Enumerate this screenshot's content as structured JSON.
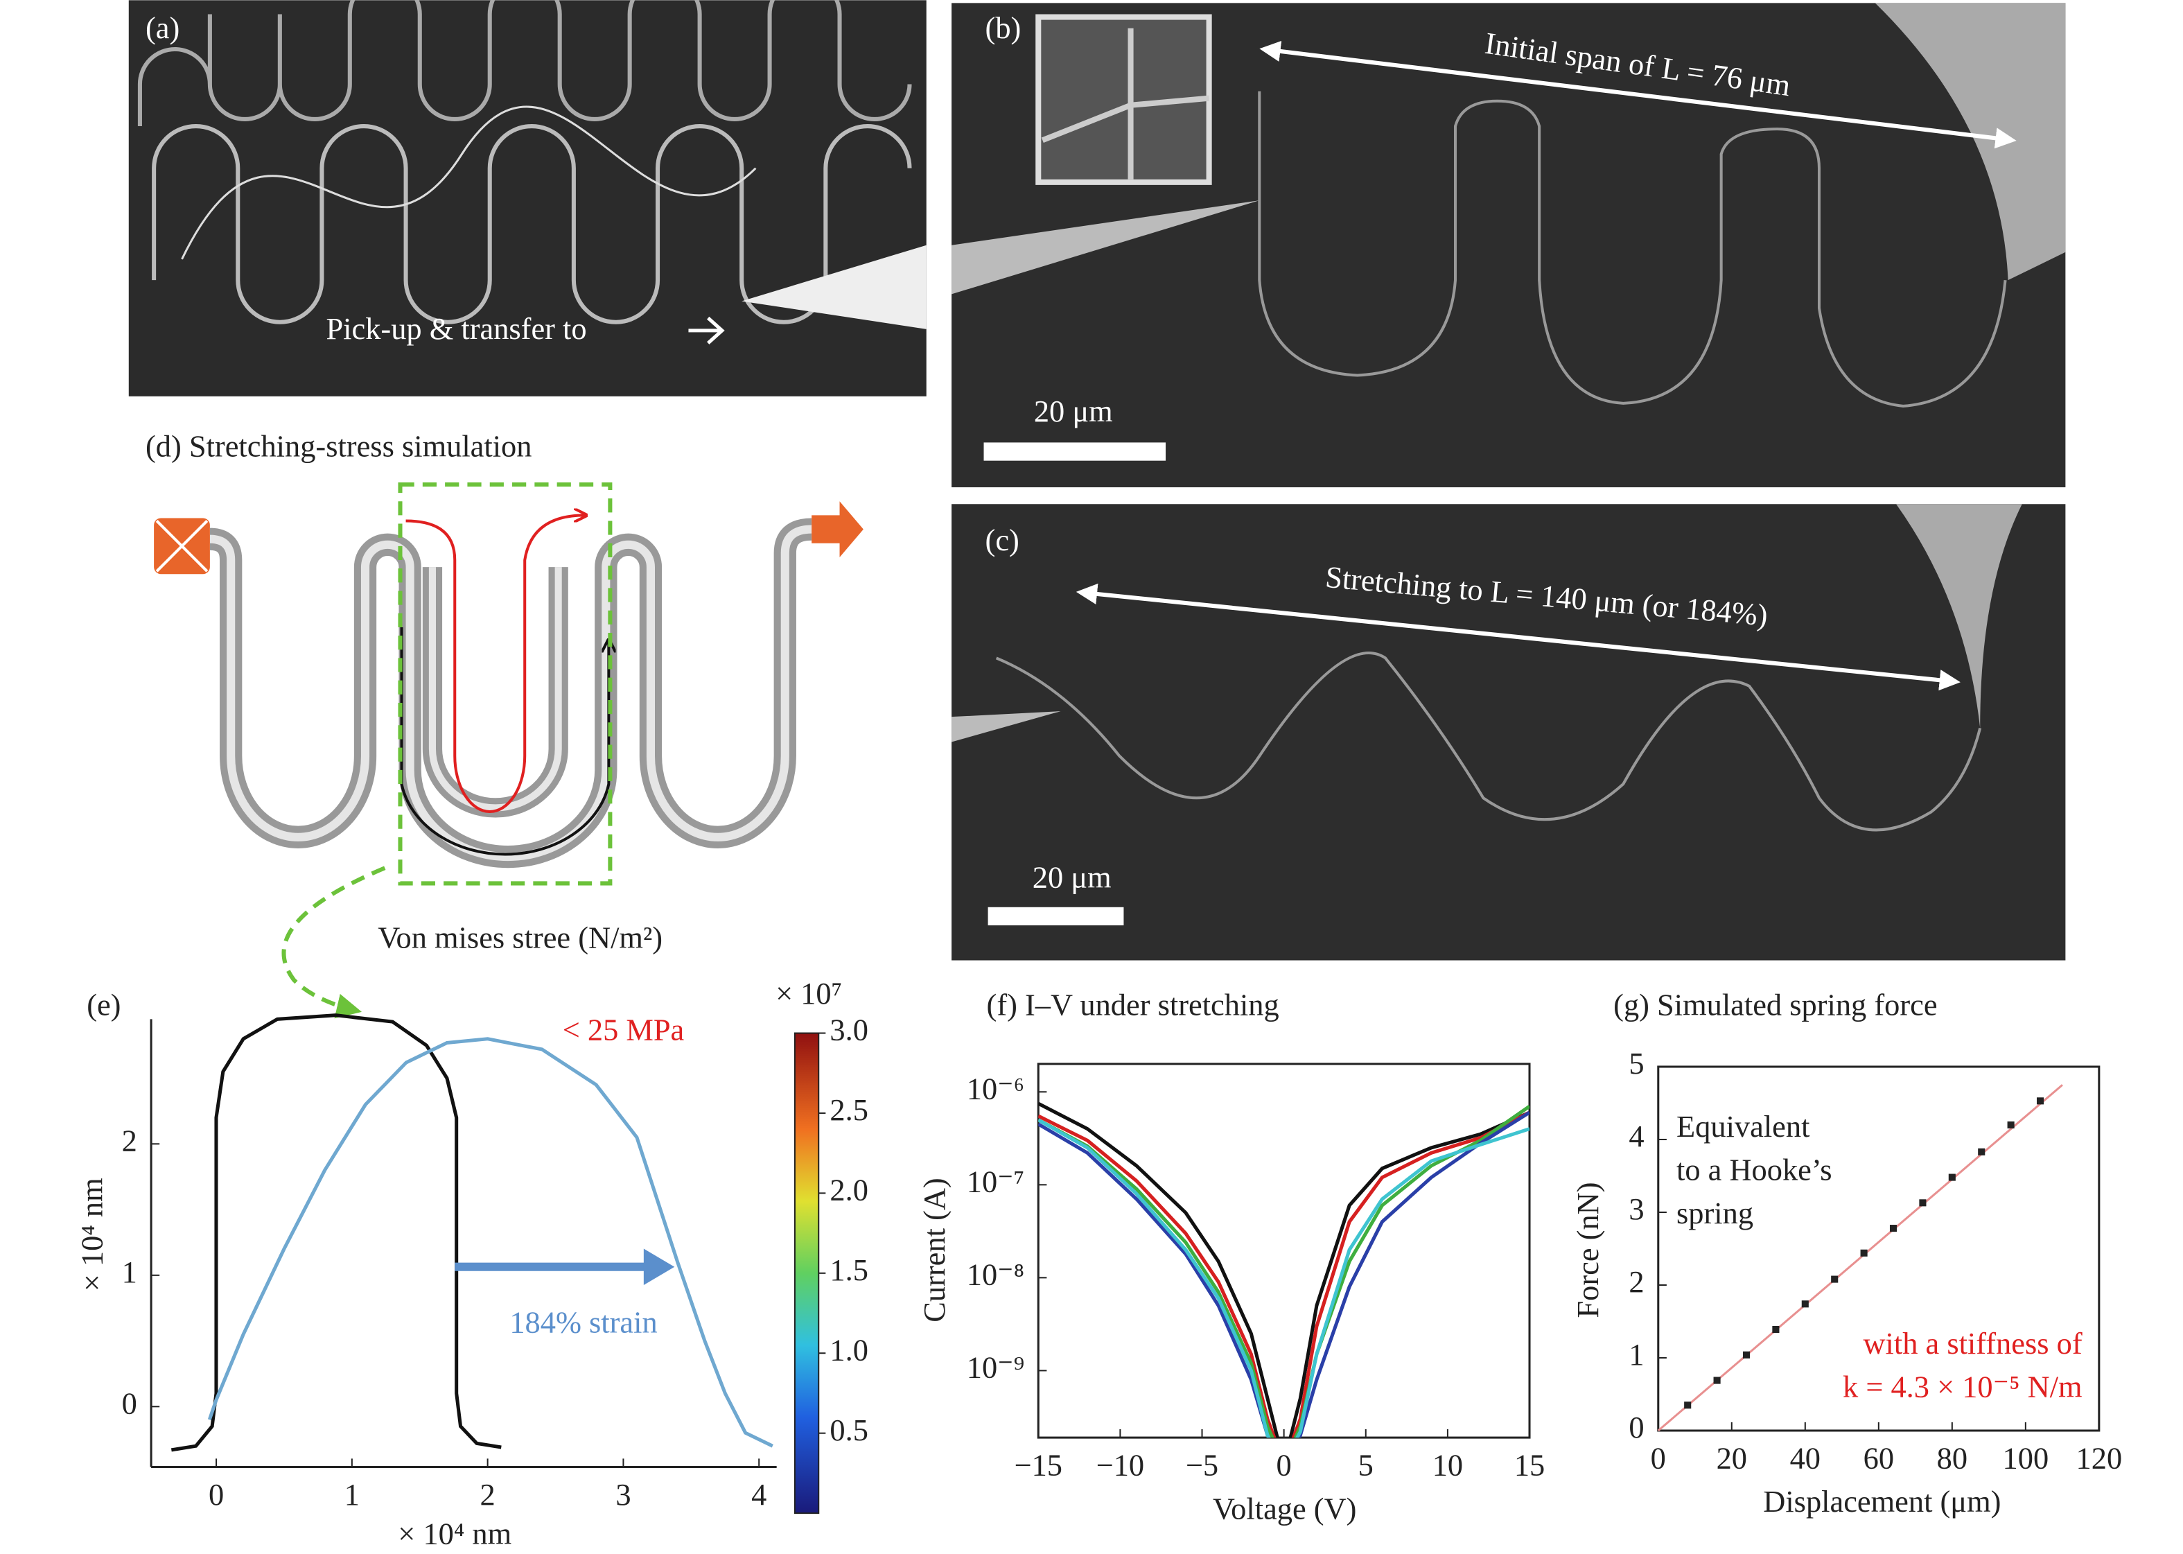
{
  "panels": {
    "a": {
      "label": "(a)",
      "caption": "Pick-up & transfer to"
    },
    "b": {
      "label": "(b)",
      "annotation": "Initial span of L = 76 μm",
      "scale_bar": "20 μm"
    },
    "c": {
      "label": "(c)",
      "annotation": "Stretching to L = 140 μm (or 184%)",
      "scale_bar": "20 μm"
    },
    "d": {
      "title": "(d) Stretching-stress simulation",
      "caption": "Von mises stree (N/m²)"
    }
  },
  "chart_data": [
    {
      "type": "line",
      "title": "(e)",
      "xlabel": "× 10⁴ nm",
      "ylabel": "× 10⁴ nm",
      "xlim": [
        -0.48,
        4.13
      ],
      "ylim": [
        -0.46,
        2.95
      ],
      "xticks": [
        0,
        1,
        2,
        3,
        4
      ],
      "yticks": [
        0,
        1,
        2
      ],
      "annotations": [
        "< 25 MPa",
        "184% strain"
      ],
      "colorbar": {
        "multiplier": "× 10⁷",
        "lim": [
          0,
          3
        ],
        "ticks": [
          {
            "value": 3,
            "label": "3.0"
          },
          2.5,
          {
            "value": 2,
            "label": "2.0"
          },
          1.5,
          {
            "value": 1,
            "label": "1.0"
          },
          0.5
        ]
      },
      "series": [
        {
          "color": "#111111",
          "x": [
            -0.33,
            -0.15,
            -0.03,
            0,
            0,
            0.05,
            0.2,
            0.45,
            0.88,
            1.3,
            1.55,
            1.7,
            1.77,
            1.77,
            1.8,
            1.92,
            2.1
          ],
          "values": [
            -0.33,
            -0.3,
            -0.15,
            0.1,
            2.2,
            2.55,
            2.8,
            2.95,
            2.98,
            2.93,
            2.75,
            2.5,
            2.2,
            0.1,
            -0.15,
            -0.28,
            -0.31
          ]
        },
        {
          "color": "#6fa8d0",
          "x": [
            -0.05,
            0,
            0.2,
            0.5,
            0.8,
            1.1,
            1.4,
            1.7,
            2.0,
            2.4,
            2.8,
            3.1,
            3.4,
            3.6,
            3.75,
            3.9,
            4.1
          ],
          "values": [
            -0.1,
            0.05,
            0.55,
            1.2,
            1.8,
            2.3,
            2.62,
            2.77,
            2.8,
            2.72,
            2.45,
            2.05,
            1.1,
            0.5,
            0.1,
            -0.2,
            -0.3
          ]
        }
      ]
    },
    {
      "type": "line",
      "title": "(f) I–V under stretching",
      "xlabel": "Voltage (V)",
      "ylabel": "Current (A)",
      "log_y": true,
      "xlim": [
        -15,
        15
      ],
      "ylim": [
        1.9e-10,
        2e-06
      ],
      "xticks": [
        {
          "value": -15,
          "label": "−15"
        },
        {
          "value": -10,
          "label": "−10"
        },
        {
          "value": -5,
          "label": "−5"
        },
        0,
        5,
        10,
        15
      ],
      "yticks": [
        {
          "value": 1e-06,
          "label": "10⁻⁶"
        },
        {
          "value": 1e-07,
          "label": "10⁻⁷"
        },
        {
          "value": 1e-08,
          "label": "10⁻⁸"
        },
        {
          "value": 1e-09,
          "label": "10⁻⁹"
        }
      ],
      "x": [
        -15,
        -12,
        -9,
        -6,
        -4,
        -2,
        -1,
        0,
        1,
        2,
        4,
        6,
        9,
        12,
        15
      ],
      "series": [
        {
          "color": "#111111",
          "values": [
            7.5e-07,
            4e-07,
            1.6e-07,
            5e-08,
            1.5e-08,
            2.5e-09,
            5e-10,
            1e-10,
            5e-10,
            5e-09,
            6e-08,
            1.5e-07,
            2.5e-07,
            3.5e-07,
            6e-07
          ]
        },
        {
          "color": "#d62020",
          "values": [
            5.5e-07,
            3e-07,
            1.1e-07,
            3e-08,
            9e-09,
            1.5e-09,
            3e-10,
            1e-10,
            3e-10,
            3e-09,
            4e-08,
            1.2e-07,
            2.2e-07,
            3.2e-07,
            6e-07
          ]
        },
        {
          "color": "#3fae3f",
          "values": [
            5e-07,
            2.6e-07,
            9e-08,
            2.4e-08,
            7e-09,
            1.2e-09,
            2.5e-10,
            1e-10,
            2.5e-10,
            1.5e-09,
            1.5e-08,
            6e-08,
            1.6e-07,
            3e-07,
            7e-07
          ]
        },
        {
          "color": "#2a3fa8",
          "values": [
            4.5e-07,
            2.2e-07,
            7e-08,
            1.8e-08,
            5e-09,
            8e-10,
            2e-10,
            1e-10,
            2e-10,
            8e-10,
            8e-09,
            4e-08,
            1.2e-07,
            2.8e-07,
            6e-07
          ]
        },
        {
          "color": "#3fc4d0",
          "values": [
            5e-07,
            2.5e-07,
            8e-08,
            2e-08,
            6e-09,
            1e-09,
            2e-10,
            1e-10,
            2.2e-10,
            1.5e-09,
            2e-08,
            7e-08,
            1.8e-07,
            2.7e-07,
            4e-07
          ]
        }
      ]
    },
    {
      "type": "scatter",
      "title": "(g) Simulated spring force",
      "xlabel": "Displacement (μm)",
      "ylabel": "Force (nN)",
      "xlim": [
        0,
        120
      ],
      "ylim": [
        0,
        5
      ],
      "xticks": [
        0,
        20,
        40,
        60,
        80,
        100,
        120
      ],
      "yticks": [
        0,
        1,
        2,
        3,
        4,
        5
      ],
      "annotations": [
        "Equivalent",
        "to a Hooke’s",
        "spring"
      ],
      "annotations_red": [
        "with a stiffness of",
        "k = 4.3 × 10⁻⁵ N/m"
      ],
      "series": [
        {
          "color": "#222222",
          "x": [
            8,
            16,
            24,
            32,
            40,
            48,
            56,
            64,
            72,
            80,
            88,
            96,
            104
          ],
          "values": [
            0.35,
            0.69,
            1.04,
            1.39,
            1.74,
            2.08,
            2.44,
            2.78,
            3.13,
            3.48,
            3.83,
            4.2,
            4.53
          ]
        }
      ],
      "fit": {
        "color": "#e89090",
        "x": [
          0,
          110
        ],
        "values": [
          0,
          4.75
        ]
      }
    }
  ]
}
